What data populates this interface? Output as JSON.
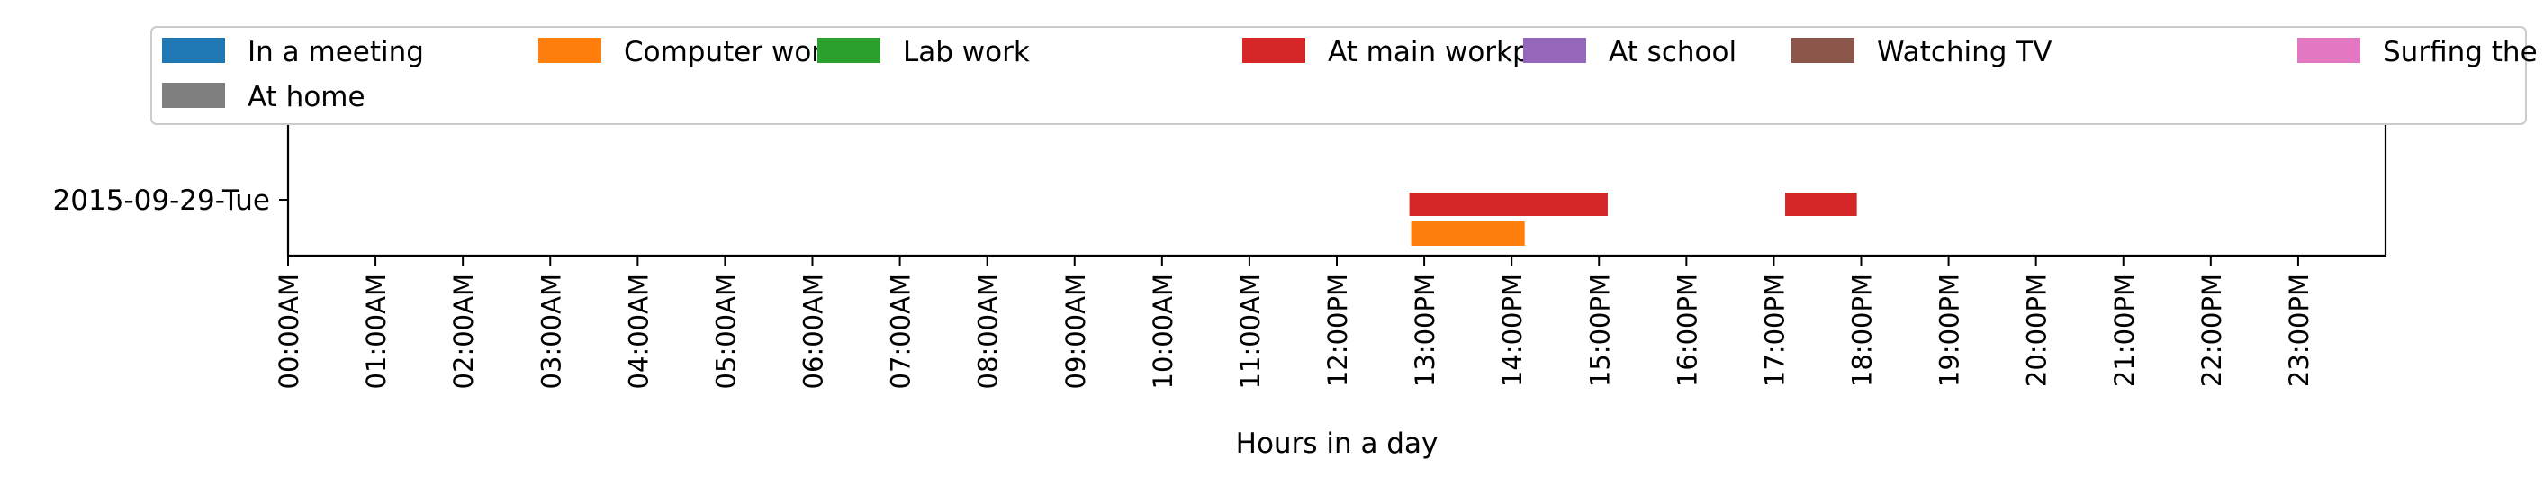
{
  "chart_data": {
    "type": "timeline",
    "xlabel": "Hours in a day",
    "xlim": [
      0,
      24
    ],
    "x_ticks": [
      {
        "value": 0,
        "label": "00:00AM"
      },
      {
        "value": 1,
        "label": "01:00AM"
      },
      {
        "value": 2,
        "label": "02:00AM"
      },
      {
        "value": 3,
        "label": "03:00AM"
      },
      {
        "value": 4,
        "label": "04:00AM"
      },
      {
        "value": 5,
        "label": "05:00AM"
      },
      {
        "value": 6,
        "label": "06:00AM"
      },
      {
        "value": 7,
        "label": "07:00AM"
      },
      {
        "value": 8,
        "label": "08:00AM"
      },
      {
        "value": 9,
        "label": "09:00AM"
      },
      {
        "value": 10,
        "label": "10:00AM"
      },
      {
        "value": 11,
        "label": "11:00AM"
      },
      {
        "value": 12,
        "label": "12:00PM"
      },
      {
        "value": 13,
        "label": "13:00PM"
      },
      {
        "value": 14,
        "label": "14:00PM"
      },
      {
        "value": 15,
        "label": "15:00PM"
      },
      {
        "value": 16,
        "label": "16:00PM"
      },
      {
        "value": 17,
        "label": "17:00PM"
      },
      {
        "value": 18,
        "label": "18:00PM"
      },
      {
        "value": 19,
        "label": "19:00PM"
      },
      {
        "value": 20,
        "label": "20:00PM"
      },
      {
        "value": 21,
        "label": "21:00PM"
      },
      {
        "value": 22,
        "label": "22:00PM"
      },
      {
        "value": 23,
        "label": "23:00PM"
      }
    ],
    "rows": [
      "2015-09-29-Tue"
    ],
    "legend": {
      "placement": "top",
      "columns": 7,
      "entries": [
        {
          "name": "In a meeting",
          "color": "#1f77b4"
        },
        {
          "name": "Computer work",
          "color": "#ff7f0e"
        },
        {
          "name": "Lab work",
          "color": "#2ca02c"
        },
        {
          "name": "At main workplace",
          "color": "#d62728"
        },
        {
          "name": "At school",
          "color": "#9467bd"
        },
        {
          "name": "Watching TV",
          "color": "#8c564b"
        },
        {
          "name": "Surfing the internet",
          "color": "#e377c2"
        },
        {
          "name": "At home",
          "color": "#7f7f7f"
        }
      ]
    },
    "intervals": [
      {
        "row": "2015-09-29-Tue",
        "activity": "At main workplace",
        "start": 12.83,
        "end": 15.1
      },
      {
        "row": "2015-09-29-Tue",
        "activity": "At main workplace",
        "start": 17.13,
        "end": 17.95
      },
      {
        "row": "2015-09-29-Tue",
        "activity": "Computer work",
        "start": 12.85,
        "end": 14.15
      }
    ]
  }
}
